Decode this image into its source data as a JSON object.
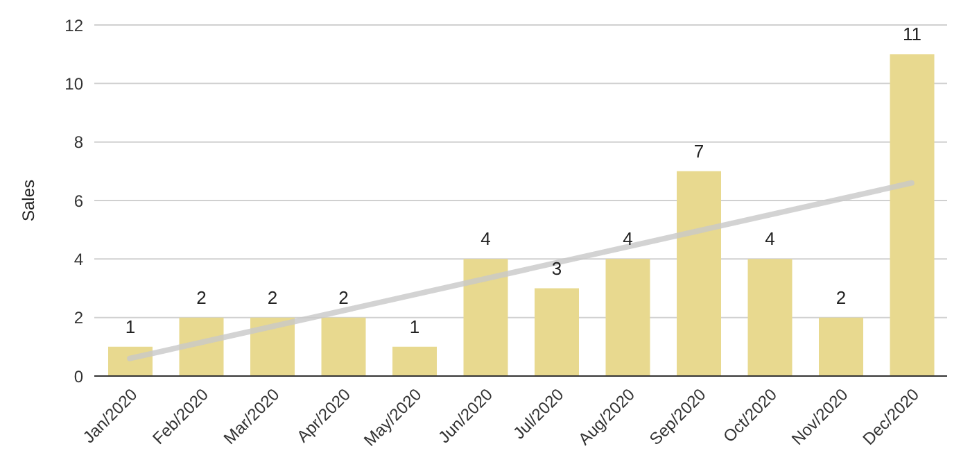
{
  "chart_data": {
    "type": "bar",
    "ylabel": "Sales",
    "categories": [
      "Jan/2020",
      "Feb/2020",
      "Mar/2020",
      "Apr/2020",
      "May/2020",
      "Jun/2020",
      "Jul/2020",
      "Aug/2020",
      "Sep/2020",
      "Oct/2020",
      "Nov/2020",
      "Dec/2020"
    ],
    "series": [
      {
        "color": "#e8d98f",
        "values": [
          1,
          2,
          2,
          2,
          1,
          4,
          3,
          4,
          7,
          4,
          2,
          11
        ],
        "value_labels": [
          "1",
          "2",
          "2",
          "2",
          "1",
          "4",
          "3",
          "4",
          "7",
          "4",
          "2",
          "11"
        ]
      },
      {
        "type": "line",
        "color": "#c8c8c8",
        "x": [
          "Jan/2020",
          "Dec/2020"
        ],
        "values": [
          0.6,
          6.6
        ]
      }
    ],
    "ylim": [
      0,
      12
    ],
    "yticks": [
      0,
      2,
      4,
      6,
      8,
      10,
      12
    ],
    "grid": "y"
  }
}
